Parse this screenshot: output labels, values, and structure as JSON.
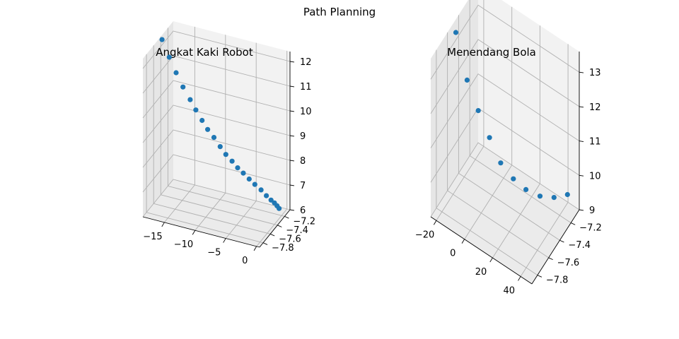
{
  "figure": {
    "suptitle": "Path Planning"
  },
  "chart_data": [
    {
      "type": "scatter",
      "projection": "3d",
      "title": "Angkat Kaki Robot",
      "xlabel": "",
      "ylabel": "",
      "zlabel": "",
      "xlim": [
        -18.5,
        0.5
      ],
      "ylim": [
        -7.9,
        -7.05
      ],
      "zlim": [
        6.0,
        12.4
      ],
      "x_ticks": [
        -15,
        -10,
        -5,
        0
      ],
      "y_ticks": [
        -7.8,
        -7.6,
        -7.4,
        -7.2
      ],
      "z_ticks": [
        6,
        7,
        8,
        9,
        10,
        11,
        12
      ],
      "x_tick_labels": [
        "−15",
        "−10",
        "−5",
        "0"
      ],
      "y_tick_labels": [
        "−7.8",
        "−7.6",
        "−7.4",
        "−7.2"
      ],
      "z_tick_labels": [
        "6",
        "7",
        "8",
        "9",
        "10",
        "11",
        "12"
      ],
      "grid": true,
      "marker_color": "#1f77b4",
      "points": [
        {
          "x": -18.0,
          "y": -7.45,
          "z": 12.4
        },
        {
          "x": -17.0,
          "y": -7.42,
          "z": 11.7
        },
        {
          "x": -16.0,
          "y": -7.4,
          "z": 11.1
        },
        {
          "x": -15.0,
          "y": -7.38,
          "z": 10.55
        },
        {
          "x": -14.0,
          "y": -7.35,
          "z": 10.05
        },
        {
          "x": -13.2,
          "y": -7.33,
          "z": 9.65
        },
        {
          "x": -12.3,
          "y": -7.31,
          "z": 9.25
        },
        {
          "x": -11.5,
          "y": -7.29,
          "z": 8.9
        },
        {
          "x": -10.6,
          "y": -7.27,
          "z": 8.6
        },
        {
          "x": -9.7,
          "y": -7.25,
          "z": 8.25
        },
        {
          "x": -8.9,
          "y": -7.23,
          "z": 7.95
        },
        {
          "x": -8.0,
          "y": -7.21,
          "z": 7.7
        },
        {
          "x": -7.2,
          "y": -7.19,
          "z": 7.45
        },
        {
          "x": -6.4,
          "y": -7.17,
          "z": 7.25
        },
        {
          "x": -5.5,
          "y": -7.16,
          "z": 7.05
        },
        {
          "x": -4.7,
          "y": -7.14,
          "z": 6.85
        },
        {
          "x": -3.8,
          "y": -7.12,
          "z": 6.65
        },
        {
          "x": -3.0,
          "y": -7.11,
          "z": 6.45
        },
        {
          "x": -2.3,
          "y": -7.1,
          "z": 6.3
        },
        {
          "x": -1.8,
          "y": -7.09,
          "z": 6.2
        },
        {
          "x": -1.4,
          "y": -7.085,
          "z": 6.1
        },
        {
          "x": -1.1,
          "y": -7.08,
          "z": 6.0
        }
      ]
    },
    {
      "type": "scatter",
      "projection": "3d",
      "title": "Menendang Bola",
      "xlabel": "",
      "ylabel": "",
      "zlabel": "",
      "xlim": [
        -24,
        48
      ],
      "ylim": [
        -7.9,
        -7.05
      ],
      "zlim": [
        9.0,
        13.6
      ],
      "x_ticks": [
        -20,
        0,
        20,
        40
      ],
      "y_ticks": [
        -7.8,
        -7.6,
        -7.4,
        -7.2
      ],
      "z_ticks": [
        9,
        10,
        11,
        12,
        13
      ],
      "x_tick_labels": [
        "−20",
        "0",
        "20",
        "40"
      ],
      "y_tick_labels": [
        "−7.8",
        "−7.6",
        "−7.4",
        "−7.2"
      ],
      "z_tick_labels": [
        "9",
        "10",
        "11",
        "12",
        "13"
      ],
      "grid": true,
      "marker_color": "#1f77b4",
      "points": [
        {
          "x": -22.0,
          "y": -7.5,
          "z": 13.4
        },
        {
          "x": -16.0,
          "y": -7.45,
          "z": 12.05
        },
        {
          "x": -10.0,
          "y": -7.4,
          "z": 11.2
        },
        {
          "x": -4.0,
          "y": -7.35,
          "z": 10.45
        },
        {
          "x": 2.0,
          "y": -7.3,
          "z": 9.75
        },
        {
          "x": 9.0,
          "y": -7.25,
          "z": 9.35
        },
        {
          "x": 16.0,
          "y": -7.2,
          "z": 9.1
        },
        {
          "x": 24.0,
          "y": -7.15,
          "z": 9.0
        },
        {
          "x": 32.0,
          "y": -7.1,
          "z": 9.05
        },
        {
          "x": 40.0,
          "y": -7.06,
          "z": 9.25
        }
      ]
    }
  ]
}
